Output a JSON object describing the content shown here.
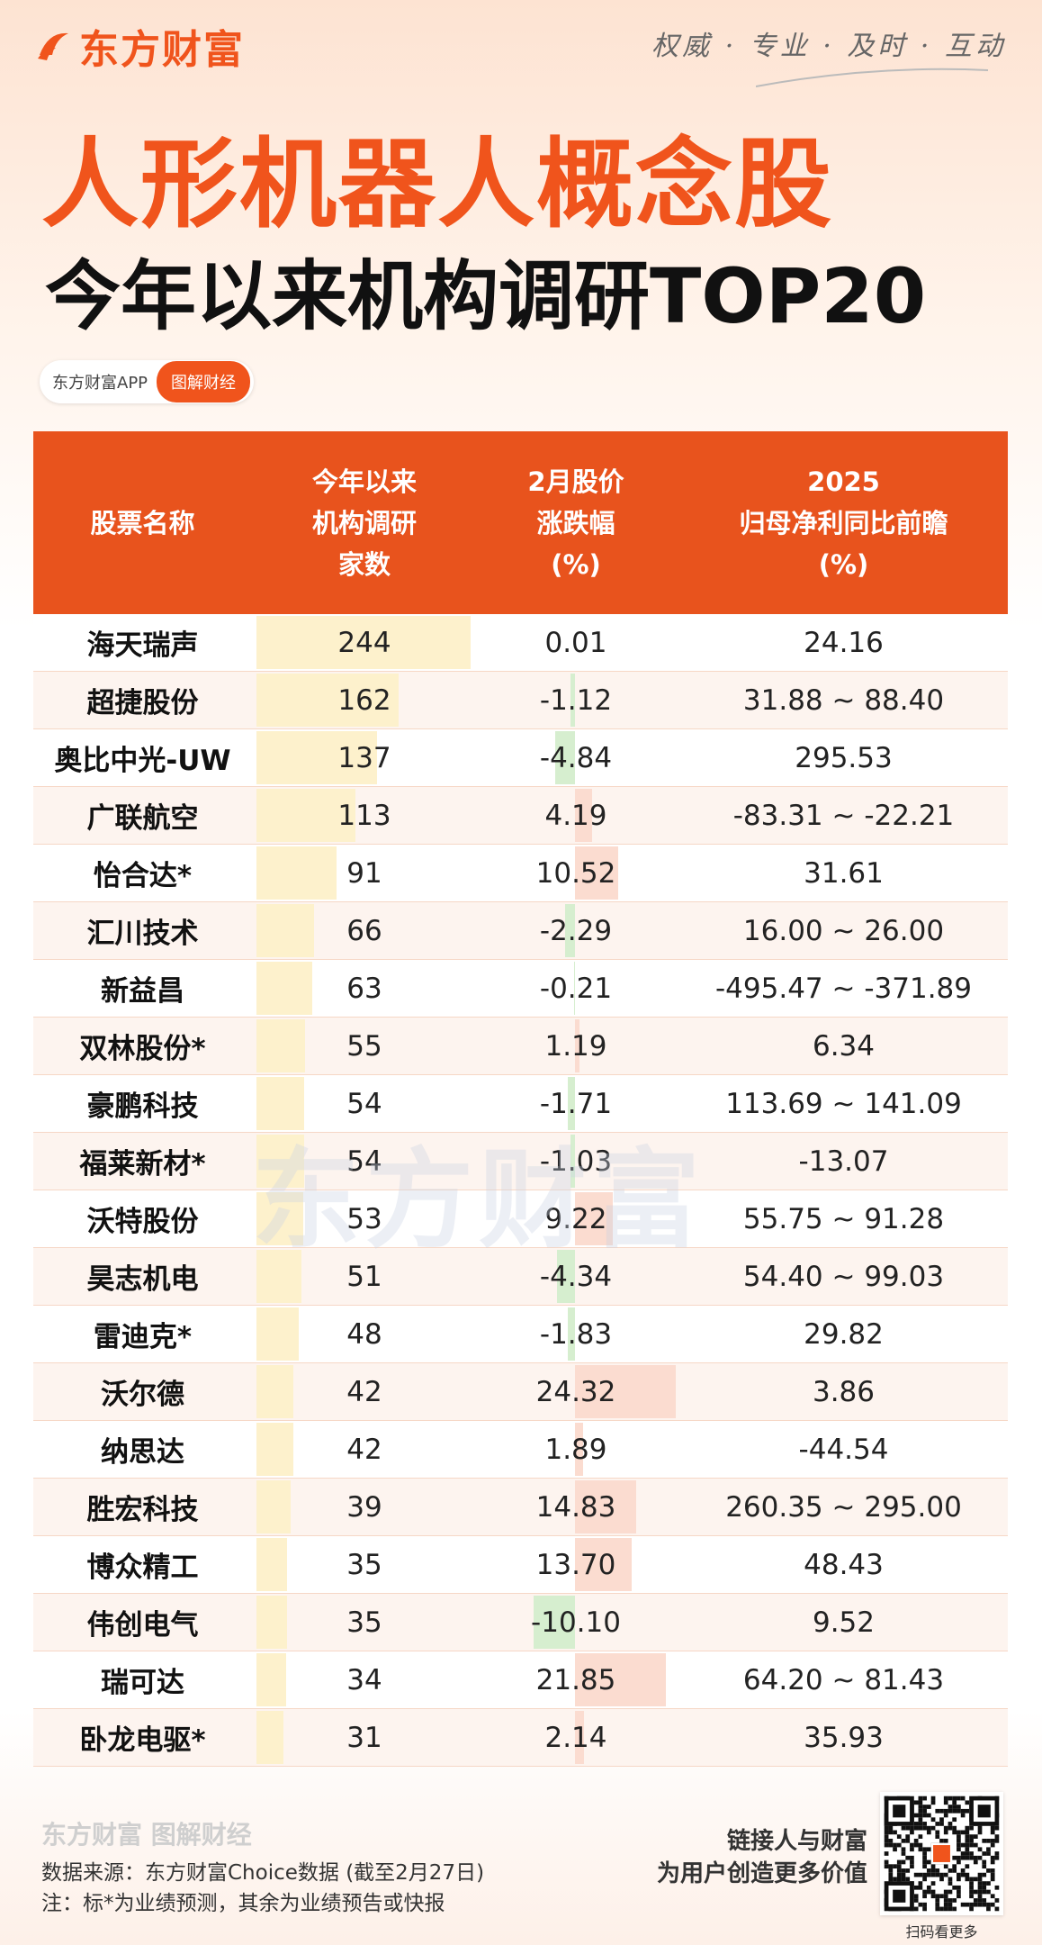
{
  "header": {
    "logo": "东方财富",
    "slogan": "权威 · 专业 · 及时 · 互动",
    "title": "人形机器人概念股",
    "subtitle": "今年以来机构调研TOP20",
    "app": "东方财富APP",
    "tag": "图解财经"
  },
  "table": {
    "columns": [
      [
        "股票名称"
      ],
      [
        "今年以来",
        "机构调研",
        "家数"
      ],
      [
        "2月股价",
        "涨跌幅",
        "(%)"
      ],
      [
        "2025",
        "归母净利同比前瞻",
        "(%)"
      ]
    ],
    "rows": [
      [
        "海天瑞声",
        "244",
        "0.01",
        "24.16"
      ],
      [
        "超捷股份",
        "162",
        "-1.12",
        "31.88 ~ 88.40"
      ],
      [
        "奥比中光-UW",
        "137",
        "-4.84",
        "295.53"
      ],
      [
        "广联航空",
        "113",
        "4.19",
        "-83.31 ~ -22.21"
      ],
      [
        "怡合达*",
        "91",
        "10.52",
        "31.61"
      ],
      [
        "汇川技术",
        "66",
        "-2.29",
        "16.00 ~ 26.00"
      ],
      [
        "新益昌",
        "63",
        "-0.21",
        "-495.47 ~ -371.89"
      ],
      [
        "双林股份*",
        "55",
        "1.19",
        "6.34"
      ],
      [
        "豪鹏科技",
        "54",
        "-1.71",
        "113.69 ~ 141.09"
      ],
      [
        "福莱新材*",
        "54",
        "-1.03",
        "-13.07"
      ],
      [
        "沃特股份",
        "53",
        "9.22",
        "55.75 ~ 91.28"
      ],
      [
        "昊志机电",
        "51",
        "-4.34",
        "54.40 ~ 99.03"
      ],
      [
        "雷迪克*",
        "48",
        "-1.83",
        "29.82"
      ],
      [
        "沃尔德",
        "42",
        "24.32",
        "3.86"
      ],
      [
        "纳思达",
        "42",
        "1.89",
        "-44.54"
      ],
      [
        "胜宏科技",
        "39",
        "14.83",
        "260.35 ~ 295.00"
      ],
      [
        "博众精工",
        "35",
        "13.70",
        "48.43"
      ],
      [
        "伟创电气",
        "35",
        "-10.10",
        "9.52"
      ],
      [
        "瑞可达",
        "34",
        "21.85",
        "64.20 ~ 81.43"
      ],
      [
        "卧龙电驱*",
        "31",
        "2.14",
        "35.93"
      ]
    ]
  },
  "watermark": "东方财富",
  "footer": {
    "brand": "东方财富  图解财经",
    "source": "数据来源：东方财富Choice数据 (截至2月27日)",
    "note": "注：标*为业绩预测，其余为业绩预告或快报",
    "slogan1": "链接人与财富",
    "slogan2": "为用户创造更多价值",
    "qr_caption": "扫码看更多"
  }
}
